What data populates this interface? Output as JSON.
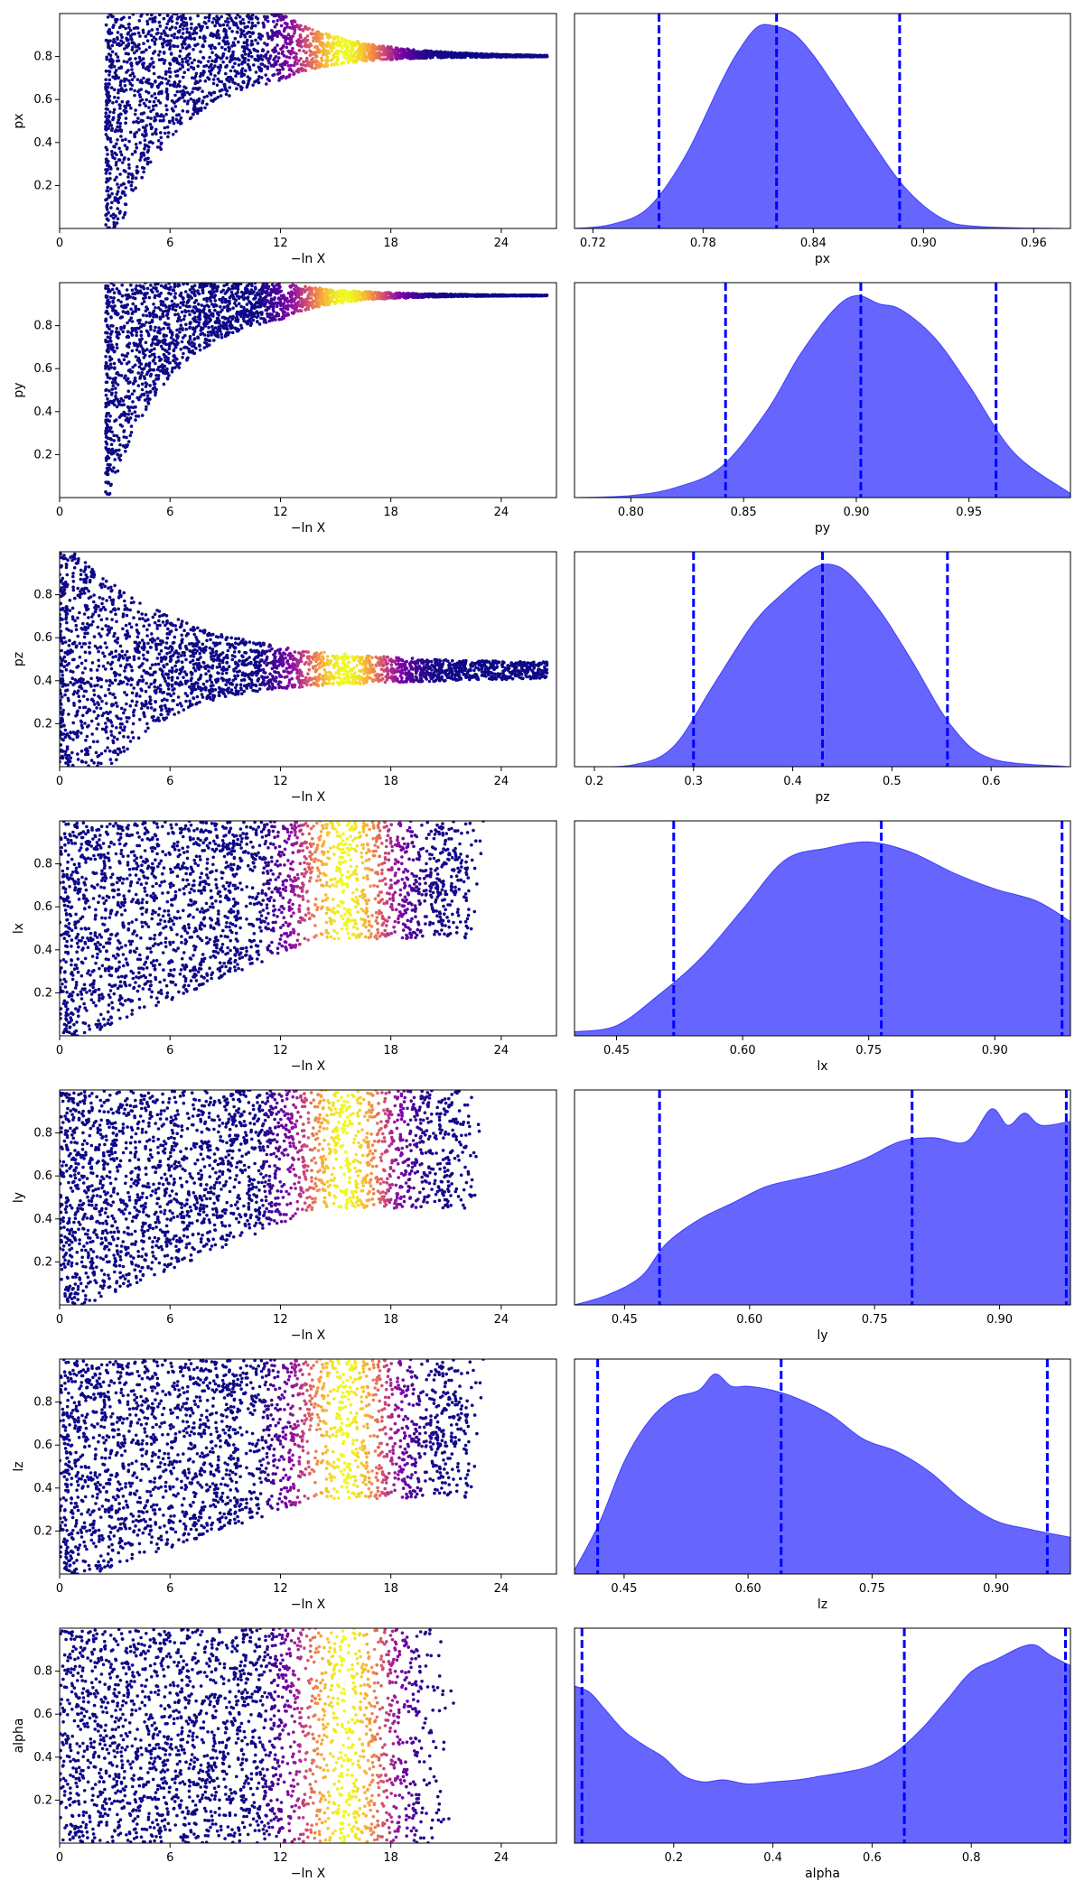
{
  "chart_data": [
    {
      "type": "scatter",
      "param": "px",
      "xlabel": "−ln X",
      "ylabel": "px",
      "xlim": [
        0,
        27
      ],
      "ylim": [
        0,
        1
      ],
      "xticks": [
        0,
        6,
        12,
        18,
        24
      ],
      "yticks": [
        0.2,
        0.4,
        0.6,
        0.8
      ],
      "colormap": "plasma",
      "color_peak_x": 15.5,
      "envelope": "converging",
      "converge_to": 0.8,
      "start_x": 2.5
    },
    {
      "type": "area",
      "param": "px",
      "xlabel": "px",
      "xlim": [
        0.71,
        0.98
      ],
      "xticks": [
        0.72,
        0.78,
        0.84,
        0.9,
        0.96
      ],
      "xtick_labels": [
        "0.72",
        "0.78",
        "0.84",
        "0.90",
        "0.96"
      ],
      "quantile_lines": [
        0.756,
        0.82,
        0.887
      ],
      "fill_color": "#6666ff",
      "line_color": "#0000ff",
      "density": {
        "x": [
          0.71,
          0.73,
          0.75,
          0.77,
          0.79,
          0.8,
          0.81,
          0.82,
          0.83,
          0.84,
          0.85,
          0.87,
          0.89,
          0.91,
          0.93,
          0.98
        ],
        "y": [
          0,
          0.02,
          0.1,
          0.35,
          0.72,
          0.88,
          0.99,
          0.99,
          0.95,
          0.85,
          0.72,
          0.45,
          0.2,
          0.05,
          0.01,
          0
        ]
      }
    },
    {
      "type": "scatter",
      "param": "py",
      "xlabel": "−ln X",
      "ylabel": "py",
      "xlim": [
        0,
        27
      ],
      "ylim": [
        0,
        1
      ],
      "xticks": [
        0,
        6,
        12,
        18,
        24
      ],
      "yticks": [
        0.2,
        0.4,
        0.6,
        0.8
      ],
      "colormap": "plasma",
      "color_peak_x": 15.5,
      "envelope": "converging",
      "converge_to": 0.94,
      "start_x": 2.5
    },
    {
      "type": "area",
      "param": "py",
      "xlabel": "py",
      "xlim": [
        0.775,
        0.995
      ],
      "xticks": [
        0.8,
        0.85,
        0.9,
        0.95
      ],
      "xtick_labels": [
        "0.80",
        "0.85",
        "0.90",
        "0.95"
      ],
      "quantile_lines": [
        0.842,
        0.902,
        0.962
      ],
      "fill_color": "#6666ff",
      "line_color": "#0000ff",
      "density": {
        "x": [
          0.775,
          0.8,
          0.82,
          0.84,
          0.86,
          0.875,
          0.89,
          0.9,
          0.91,
          0.92,
          0.935,
          0.95,
          0.97,
          0.995
        ],
        "y": [
          0,
          0.01,
          0.05,
          0.15,
          0.42,
          0.7,
          0.92,
          0.99,
          0.95,
          0.92,
          0.78,
          0.55,
          0.22,
          0.02
        ]
      }
    },
    {
      "type": "scatter",
      "param": "pz",
      "xlabel": "−ln X",
      "ylabel": "pz",
      "xlim": [
        0,
        27
      ],
      "ylim": [
        0,
        1
      ],
      "xticks": [
        0,
        6,
        12,
        18,
        24
      ],
      "yticks": [
        0.2,
        0.4,
        0.6,
        0.8
      ],
      "colormap": "plasma",
      "color_peak_x": 15.5,
      "envelope": "converging",
      "converge_to": 0.45,
      "start_x": 0
    },
    {
      "type": "area",
      "param": "pz",
      "xlabel": "pz",
      "xlim": [
        0.18,
        0.68
      ],
      "xticks": [
        0.2,
        0.3,
        0.4,
        0.5,
        0.6
      ],
      "xtick_labels": [
        "0.2",
        "0.3",
        "0.4",
        "0.5",
        "0.6"
      ],
      "quantile_lines": [
        0.3,
        0.43,
        0.556
      ],
      "fill_color": "#6666ff",
      "line_color": "#0000ff",
      "density": {
        "x": [
          0.18,
          0.24,
          0.28,
          0.32,
          0.36,
          0.39,
          0.42,
          0.44,
          0.46,
          0.49,
          0.52,
          0.56,
          0.6,
          0.68
        ],
        "y": [
          0,
          0.01,
          0.1,
          0.4,
          0.7,
          0.85,
          0.97,
          0.99,
          0.93,
          0.75,
          0.52,
          0.2,
          0.04,
          0
        ]
      }
    },
    {
      "type": "scatter",
      "param": "lx",
      "xlabel": "−ln X",
      "ylabel": "lx",
      "xlim": [
        0,
        27
      ],
      "ylim": [
        0,
        1
      ],
      "xticks": [
        0,
        6,
        12,
        18,
        24
      ],
      "yticks": [
        0.2,
        0.4,
        0.6,
        0.8
      ],
      "colormap": "plasma",
      "color_peak_x": 15.5,
      "envelope": "rising",
      "band_low": 0.5,
      "start_x": 0
    },
    {
      "type": "area",
      "param": "lx",
      "xlabel": "lx",
      "xlim": [
        0.4,
        0.99
      ],
      "xticks": [
        0.45,
        0.6,
        0.75,
        0.9
      ],
      "xtick_labels": [
        "0.45",
        "0.60",
        "0.75",
        "0.90"
      ],
      "quantile_lines": [
        0.518,
        0.765,
        0.98
      ],
      "fill_color": "#6666ff",
      "line_color": "#0000ff",
      "density": {
        "x": [
          0.4,
          0.45,
          0.5,
          0.55,
          0.6,
          0.65,
          0.7,
          0.75,
          0.8,
          0.85,
          0.9,
          0.95,
          0.99
        ],
        "y": [
          0.02,
          0.05,
          0.2,
          0.38,
          0.62,
          0.86,
          0.92,
          0.95,
          0.9,
          0.8,
          0.72,
          0.66,
          0.56
        ]
      }
    },
    {
      "type": "scatter",
      "param": "ly",
      "xlabel": "−ln X",
      "ylabel": "ly",
      "xlim": [
        0,
        27
      ],
      "ylim": [
        0,
        1
      ],
      "xticks": [
        0,
        6,
        12,
        18,
        24
      ],
      "yticks": [
        0.2,
        0.4,
        0.6,
        0.8
      ],
      "colormap": "plasma",
      "color_peak_x": 15.5,
      "envelope": "rising",
      "band_low": 0.5,
      "start_x": 0
    },
    {
      "type": "area",
      "param": "ly",
      "xlabel": "ly",
      "xlim": [
        0.39,
        0.985
      ],
      "xticks": [
        0.45,
        0.6,
        0.75,
        0.9
      ],
      "xtick_labels": [
        "0.45",
        "0.60",
        "0.75",
        "0.90"
      ],
      "quantile_lines": [
        0.492,
        0.795,
        0.98
      ],
      "fill_color": "#6666ff",
      "line_color": "#0000ff",
      "density": {
        "x": [
          0.39,
          0.43,
          0.47,
          0.5,
          0.54,
          0.58,
          0.62,
          0.66,
          0.7,
          0.74,
          0.78,
          0.82,
          0.86,
          0.89,
          0.91,
          0.93,
          0.95,
          0.985
        ],
        "y": [
          0,
          0.05,
          0.14,
          0.3,
          0.42,
          0.5,
          0.58,
          0.62,
          0.66,
          0.72,
          0.8,
          0.82,
          0.8,
          0.96,
          0.88,
          0.94,
          0.88,
          0.9
        ]
      }
    },
    {
      "type": "scatter",
      "param": "lz",
      "xlabel": "−ln X",
      "ylabel": "lz",
      "xlim": [
        0,
        27
      ],
      "ylim": [
        0,
        1
      ],
      "xticks": [
        0,
        6,
        12,
        18,
        24
      ],
      "yticks": [
        0.2,
        0.4,
        0.6,
        0.8
      ],
      "colormap": "plasma",
      "color_peak_x": 15.5,
      "envelope": "rising",
      "band_low": 0.4,
      "start_x": 0
    },
    {
      "type": "area",
      "param": "lz",
      "xlabel": "lz",
      "xlim": [
        0.39,
        0.99
      ],
      "xticks": [
        0.45,
        0.6,
        0.75,
        0.9
      ],
      "xtick_labels": [
        "0.45",
        "0.60",
        "0.75",
        "0.90"
      ],
      "quantile_lines": [
        0.418,
        0.64,
        0.962
      ],
      "fill_color": "#6666ff",
      "line_color": "#0000ff",
      "density": {
        "x": [
          0.39,
          0.42,
          0.45,
          0.48,
          0.51,
          0.54,
          0.56,
          0.58,
          0.6,
          0.63,
          0.66,
          0.7,
          0.74,
          0.78,
          0.82,
          0.86,
          0.9,
          0.94,
          0.99
        ],
        "y": [
          0.02,
          0.25,
          0.55,
          0.75,
          0.86,
          0.9,
          0.98,
          0.92,
          0.92,
          0.9,
          0.86,
          0.78,
          0.66,
          0.6,
          0.5,
          0.36,
          0.26,
          0.22,
          0.18
        ]
      }
    },
    {
      "type": "scatter",
      "param": "alpha",
      "xlabel": "−ln X",
      "ylabel": "alpha",
      "xlim": [
        0,
        27
      ],
      "ylim": [
        0,
        1
      ],
      "xticks": [
        0,
        6,
        12,
        18,
        24
      ],
      "yticks": [
        0.2,
        0.4,
        0.6,
        0.8
      ],
      "colormap": "plasma",
      "color_peak_x": 15.5,
      "envelope": "uniform",
      "start_x": 0
    },
    {
      "type": "area",
      "param": "alpha",
      "xlabel": "alpha",
      "xlim": [
        0.0,
        1.0
      ],
      "xticks": [
        0.2,
        0.4,
        0.6,
        0.8
      ],
      "xtick_labels": [
        "0.2",
        "0.4",
        "0.6",
        "0.8"
      ],
      "quantile_lines": [
        0.015,
        0.665,
        0.99
      ],
      "fill_color": "#6666ff",
      "line_color": "#0000ff",
      "density": {
        "x": [
          0.0,
          0.03,
          0.06,
          0.1,
          0.14,
          0.18,
          0.22,
          0.26,
          0.3,
          0.35,
          0.4,
          0.45,
          0.5,
          0.55,
          0.6,
          0.65,
          0.7,
          0.75,
          0.8,
          0.85,
          0.9,
          0.93,
          0.96,
          1.0
        ],
        "y": [
          0.77,
          0.74,
          0.66,
          0.55,
          0.48,
          0.42,
          0.33,
          0.3,
          0.31,
          0.29,
          0.3,
          0.31,
          0.33,
          0.35,
          0.38,
          0.45,
          0.56,
          0.7,
          0.84,
          0.9,
          0.96,
          0.97,
          0.92,
          0.87
        ]
      }
    }
  ]
}
